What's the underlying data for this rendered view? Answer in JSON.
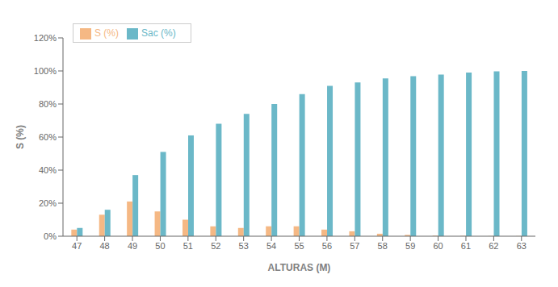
{
  "chart_data": {
    "type": "bar",
    "categories": [
      47,
      48,
      49,
      50,
      51,
      52,
      53,
      54,
      55,
      56,
      57,
      58,
      59,
      60,
      61,
      62,
      63
    ],
    "series": [
      {
        "name": "S (%)",
        "color": "#F5B884",
        "values": [
          0.04,
          0.13,
          0.21,
          0.15,
          0.1,
          0.06,
          0.05,
          0.06,
          0.06,
          0.04,
          0.03,
          0.015,
          0.008,
          0.003,
          0.002,
          0.001,
          0.001
        ]
      },
      {
        "name": "Sac (%)",
        "color": "#6BB8C8",
        "values": [
          0.05,
          0.16,
          0.37,
          0.51,
          0.61,
          0.68,
          0.74,
          0.8,
          0.86,
          0.91,
          0.93,
          0.955,
          0.968,
          0.978,
          0.99,
          0.998,
          1.0
        ]
      }
    ],
    "xlabel": "ALTURAS (M)",
    "ylabel": "S (%)",
    "ylim": [
      0,
      1.2
    ],
    "yticks": [
      {
        "value": 0,
        "label": "0%"
      },
      {
        "value": 0.2,
        "label": "20%"
      },
      {
        "value": 0.4,
        "label": "40%"
      },
      {
        "value": 0.6,
        "label": "60%"
      },
      {
        "value": 0.8,
        "label": "80%"
      },
      {
        "value": 1.0,
        "label": "100%"
      },
      {
        "value": 1.2,
        "label": "120%"
      }
    ],
    "grid": false,
    "legend": "upper left"
  }
}
